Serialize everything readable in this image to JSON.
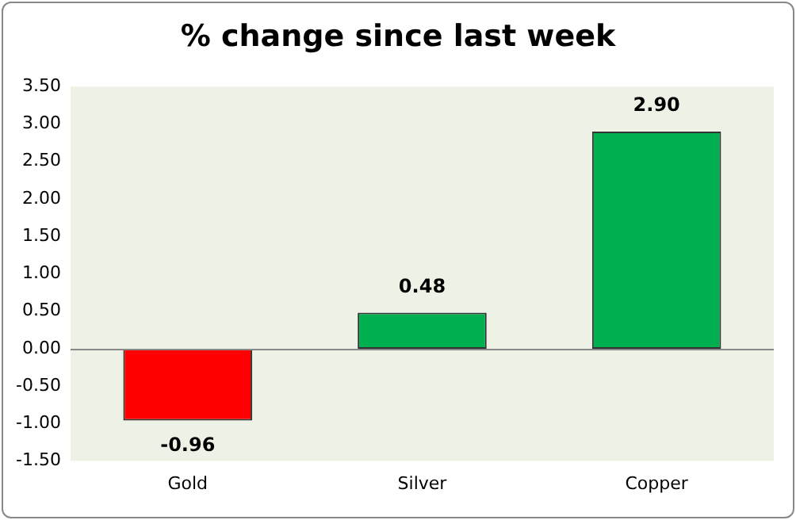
{
  "chart_data": {
    "type": "bar",
    "title": "% change since last week",
    "categories": [
      "Gold",
      "Silver",
      "Copper"
    ],
    "values": [
      -0.96,
      0.48,
      2.9
    ],
    "colors": [
      "#ff0000",
      "#00b050",
      "#00b050"
    ],
    "value_labels": [
      "-0.96",
      "0.48",
      "2.90"
    ],
    "ylim": [
      -1.5,
      3.5
    ],
    "yticks": [
      {
        "value": -1.5,
        "label": "-1.50"
      },
      {
        "value": -1,
        "label": "-1.00"
      },
      {
        "value": -0.5,
        "label": "-0.50"
      },
      {
        "value": 0,
        "label": "0.00"
      },
      {
        "value": 0.5,
        "label": "0.50"
      },
      {
        "value": 1,
        "label": "1.00"
      },
      {
        "value": 1.5,
        "label": "1.50"
      },
      {
        "value": 2,
        "label": "2.00"
      },
      {
        "value": 2.5,
        "label": "2.50"
      },
      {
        "value": 3,
        "label": "3.00"
      },
      {
        "value": 3.5,
        "label": "3.50"
      }
    ],
    "ref_lines": [
      {
        "axis": "y",
        "value": 0,
        "color": "#888888"
      }
    ],
    "grid": false,
    "legend": false
  }
}
